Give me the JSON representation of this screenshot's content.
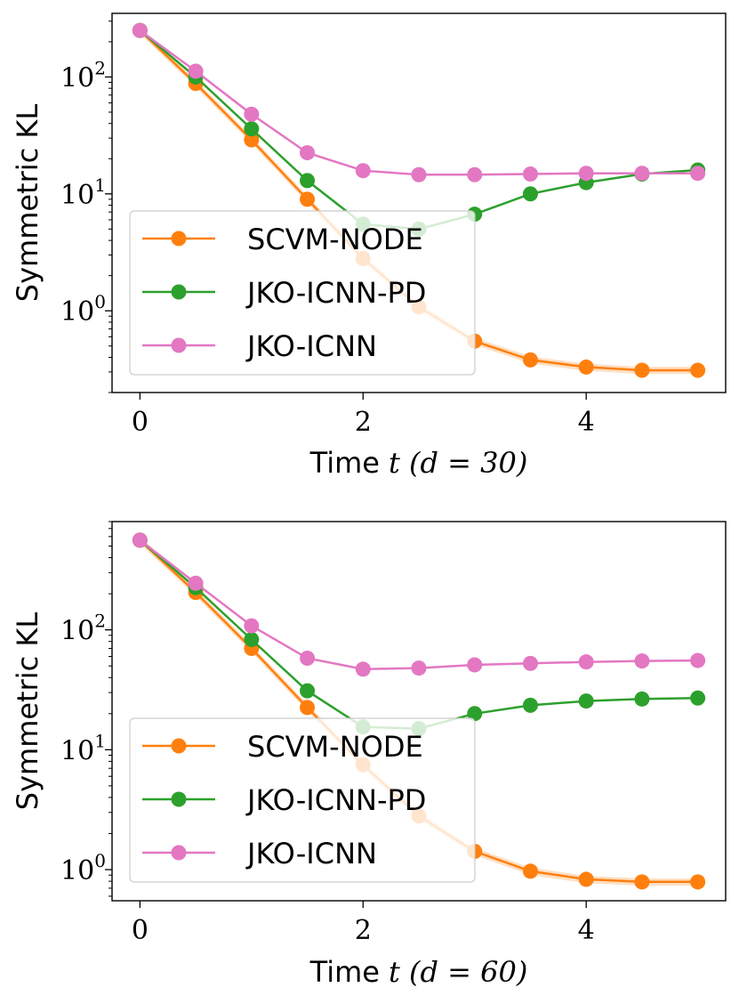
{
  "colors": {
    "scvm": "#ff7f0e",
    "pd": "#2ca02c",
    "icnn": "#e377c2"
  },
  "chart_data": [
    {
      "type": "line",
      "yscale": "log",
      "ylabel": "Symmetric KL",
      "xlabel_prefix": "Time",
      "xlabel_math": "t (d = 30)",
      "xlim": [
        -0.25,
        5.25
      ],
      "ylim": [
        0.2,
        350
      ],
      "xticks": [
        0,
        2,
        4
      ],
      "xtick_labels": [
        "0",
        "2",
        "4"
      ],
      "yticks": [
        1,
        10,
        100
      ],
      "ytick_bases": [
        "10",
        "10",
        "10"
      ],
      "ytick_exps": [
        "0",
        "1",
        "2"
      ],
      "legend_position": "center-left",
      "x": [
        0,
        0.5,
        1,
        1.5,
        2,
        2.5,
        3,
        3.5,
        4,
        4.5,
        5
      ],
      "series": [
        {
          "name": "SCVM-NODE",
          "color_key": "scvm",
          "values": [
            250,
            88,
            29,
            9,
            2.8,
            1.08,
            0.55,
            0.38,
            0.33,
            0.31,
            0.31
          ]
        },
        {
          "name": "JKO-ICNN-PD",
          "color_key": "pd",
          "values": [
            250,
            100,
            36,
            13,
            5.5,
            5.0,
            6.7,
            10,
            12.5,
            14.8,
            16
          ]
        },
        {
          "name": "JKO-ICNN",
          "color_key": "icnn",
          "values": [
            250,
            112,
            48,
            22.5,
            15.8,
            14.6,
            14.6,
            14.8,
            15.0,
            15.0,
            15.0
          ]
        }
      ]
    },
    {
      "type": "line",
      "yscale": "log",
      "ylabel": "Symmetric KL",
      "xlabel_prefix": "Time",
      "xlabel_math": "t (d = 60)",
      "xlim": [
        -0.25,
        5.25
      ],
      "ylim": [
        0.55,
        800
      ],
      "xticks": [
        0,
        2,
        4
      ],
      "xtick_labels": [
        "0",
        "2",
        "4"
      ],
      "yticks": [
        1,
        10,
        100
      ],
      "ytick_bases": [
        "10",
        "10",
        "10"
      ],
      "ytick_exps": [
        "0",
        "1",
        "2"
      ],
      "legend_position": "center-left",
      "x": [
        0,
        0.5,
        1,
        1.5,
        2,
        2.5,
        3,
        3.5,
        4,
        4.5,
        5
      ],
      "series": [
        {
          "name": "SCVM-NODE",
          "color_key": "scvm",
          "values": [
            560,
            205,
            70,
            22.5,
            7.5,
            2.8,
            1.42,
            0.97,
            0.83,
            0.79,
            0.79
          ]
        },
        {
          "name": "JKO-ICNN-PD",
          "color_key": "pd",
          "values": [
            560,
            225,
            83,
            31,
            15.5,
            15.0,
            20,
            23.5,
            25.5,
            26.5,
            27
          ]
        },
        {
          "name": "JKO-ICNN",
          "color_key": "icnn",
          "values": [
            560,
            245,
            108,
            58,
            47,
            48,
            51,
            52.5,
            54,
            55,
            55.5
          ]
        }
      ]
    }
  ]
}
